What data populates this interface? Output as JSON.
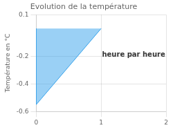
{
  "chart_data": {
    "type": "area",
    "title": "Evolution de la température",
    "ylabel": "Température en °C",
    "x": [
      0,
      0,
      1
    ],
    "values": [
      0,
      -0.55,
      0
    ],
    "xlim": [
      0,
      2
    ],
    "ylim": [
      -0.6,
      0.1
    ],
    "xticks": [
      0,
      1,
      2
    ],
    "yticks": [
      0.1,
      -0.2,
      -0.4,
      -0.6
    ],
    "grid": true,
    "annotations": [
      {
        "text": "heure par heure",
        "x": 1.5,
        "y": -0.19
      }
    ]
  }
}
